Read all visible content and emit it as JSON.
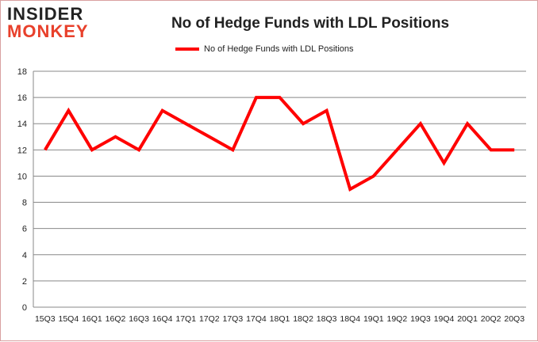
{
  "logo": {
    "line1": "INSIDER",
    "line2": "MONKEY"
  },
  "chart_data": {
    "type": "line",
    "title": "No of Hedge Funds with LDL Positions",
    "xlabel": "",
    "ylabel": "",
    "categories": [
      "15Q3",
      "15Q4",
      "16Q1",
      "16Q2",
      "16Q3",
      "16Q4",
      "17Q1",
      "17Q2",
      "17Q3",
      "17Q4",
      "18Q1",
      "18Q2",
      "18Q3",
      "18Q4",
      "19Q1",
      "19Q2",
      "19Q3",
      "19Q4",
      "20Q1",
      "20Q2",
      "20Q3"
    ],
    "series": [
      {
        "name": "No of Hedge Funds with LDL Positions",
        "color": "#ff0000",
        "values": [
          12,
          15,
          12,
          13,
          12,
          15,
          14,
          13,
          12,
          16,
          16,
          14,
          15,
          9,
          10,
          12,
          14,
          11,
          14,
          12,
          12
        ]
      }
    ],
    "ylim": [
      0,
      18
    ],
    "yticks": [
      0,
      2,
      4,
      6,
      8,
      10,
      12,
      14,
      16,
      18
    ],
    "grid": true,
    "legend": "top-center"
  }
}
